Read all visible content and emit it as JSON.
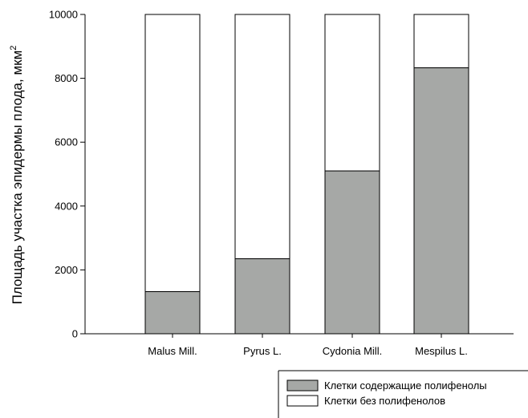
{
  "chart_data": {
    "type": "bar",
    "stacked": true,
    "categories": [
      "Malus Mill.",
      "Pyrus L.",
      "Cydonia Mill.",
      "Mespilus L."
    ],
    "series": [
      {
        "name": "Клетки содержащие полифенолы",
        "values": [
          1320,
          2350,
          5100,
          8330
        ],
        "color": "#a6a8a6"
      },
      {
        "name": "Клетки без полифенолов",
        "values": [
          8680,
          7650,
          4900,
          1670
        ],
        "color": "#ffffff"
      }
    ],
    "xlabel": "",
    "ylabel": "Площадь участка эпидермы плода, мкм",
    "ylabel_superscript": "2",
    "ylim": [
      0,
      10000
    ],
    "yticks": [
      "0",
      "2000",
      "4000",
      "6000",
      "8000",
      "10000"
    ],
    "grid": false,
    "legend_position": "bottom-right"
  }
}
